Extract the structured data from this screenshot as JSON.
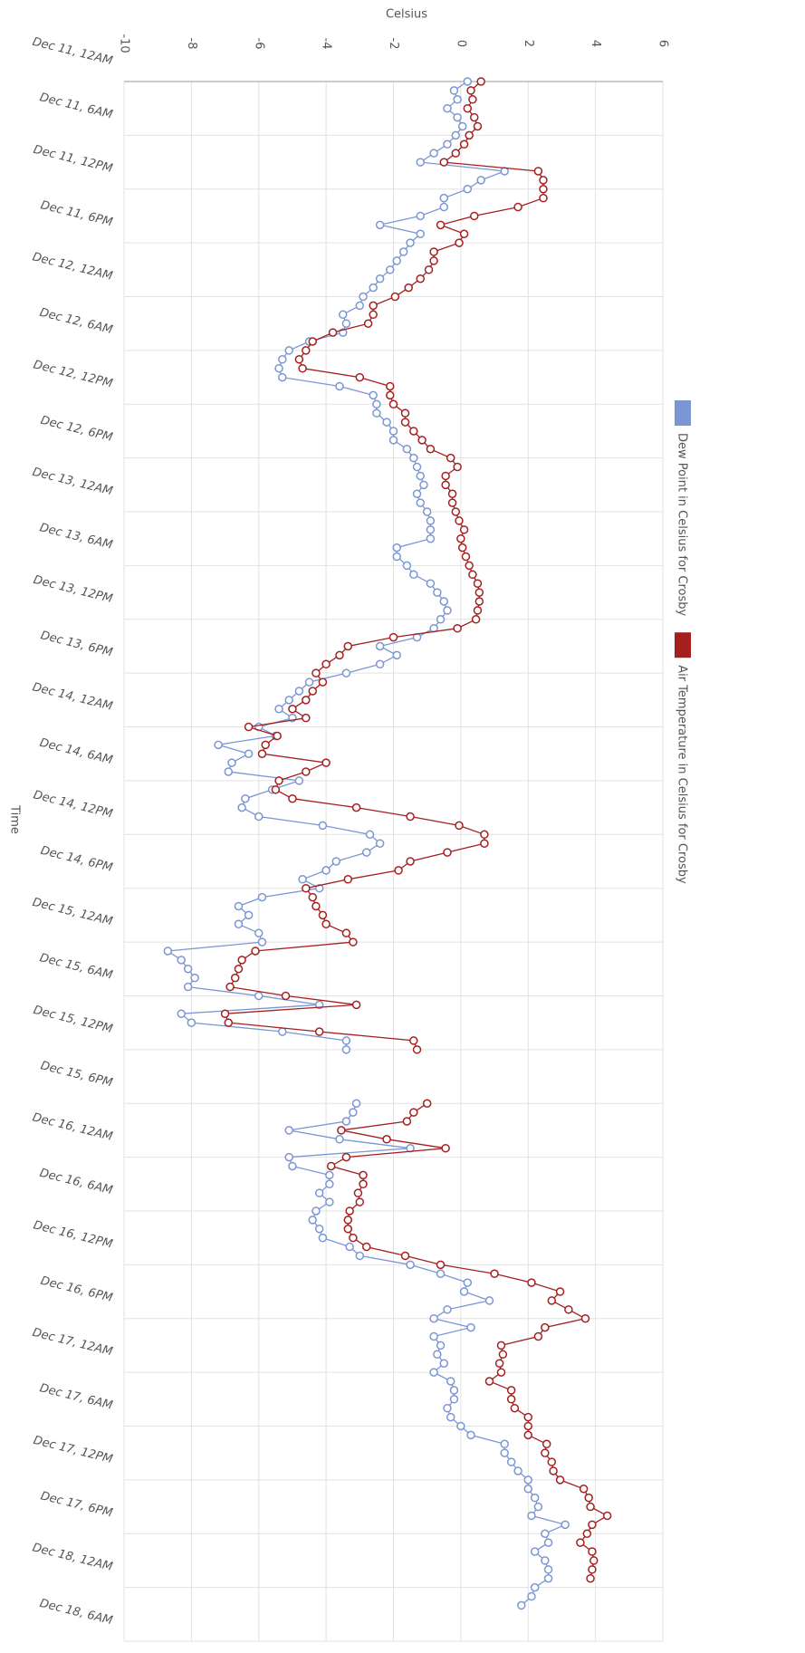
{
  "chart_data": {
    "type": "line",
    "y_label": "Celsius",
    "x_label": "Time",
    "ylim": [
      -10,
      6
    ],
    "yticks": [
      -10,
      -8,
      -6,
      -4,
      -2,
      0,
      2,
      4,
      6
    ],
    "grid": true,
    "categories": [
      "Dec 11, 12AM",
      null,
      null,
      null,
      null,
      null,
      "Dec 11, 6AM",
      null,
      null,
      null,
      null,
      null,
      "Dec 11, 12PM",
      null,
      null,
      null,
      null,
      null,
      "Dec 11, 6PM",
      null,
      null,
      null,
      null,
      null,
      "Dec 12, 12AM",
      null,
      null,
      null,
      null,
      null,
      "Dec 12, 6AM",
      null,
      null,
      null,
      null,
      null,
      "Dec 12, 12PM",
      null,
      null,
      null,
      null,
      null,
      "Dec 12, 6PM",
      null,
      null,
      null,
      null,
      null,
      "Dec 13, 12AM",
      null,
      null,
      null,
      null,
      null,
      "Dec 13, 6AM",
      null,
      null,
      null,
      null,
      null,
      "Dec 13, 12PM",
      null,
      null,
      null,
      null,
      null,
      "Dec 13, 6PM",
      null,
      null,
      null,
      null,
      null,
      "Dec 14, 12AM",
      null,
      null,
      null,
      null,
      null,
      "Dec 14, 6AM",
      null,
      null,
      null,
      null,
      null,
      "Dec 14, 12PM",
      null,
      null,
      null,
      null,
      null,
      "Dec 14, 6PM",
      null,
      null,
      null,
      null,
      null,
      "Dec 15, 12AM",
      null,
      null,
      null,
      null,
      null,
      "Dec 15, 6AM",
      null,
      null,
      null,
      null,
      null,
      "Dec 15, 12PM",
      null,
      null,
      null,
      null,
      null,
      "Dec 15, 6PM",
      null,
      null,
      null,
      null,
      null,
      "Dec 16, 12AM",
      null,
      null,
      null,
      null,
      null,
      "Dec 16, 6AM",
      null,
      null,
      null,
      null,
      null,
      "Dec 16, 12PM",
      null,
      null,
      null,
      null,
      null,
      "Dec 16, 6PM",
      null,
      null,
      null,
      null,
      null,
      "Dec 17, 12AM",
      null,
      null,
      null,
      null,
      null,
      "Dec 17, 6AM",
      null,
      null,
      null,
      null,
      null,
      "Dec 17, 12PM",
      null,
      null,
      null,
      null,
      null,
      "Dec 17, 6PM",
      null,
      null,
      null,
      null,
      null,
      "Dec 18, 12AM",
      null,
      null,
      null,
      null,
      null,
      "Dec 18, 6AM"
    ],
    "series": [
      {
        "name": "Dew Point in Celsius for Crosby",
        "color": "#7b96d4",
        "values": [
          0.2,
          -0.2,
          -0.1,
          -0.4,
          -0.1,
          0.05,
          -0.15,
          -0.4,
          -0.8,
          -1.2,
          1.3,
          0.6,
          0.2,
          -0.5,
          -0.5,
          -1.2,
          -2.4,
          -1.2,
          -1.5,
          -1.7,
          -1.9,
          -2.1,
          -2.4,
          -2.6,
          -2.9,
          -3.0,
          -3.5,
          -3.4,
          -3.5,
          -4.5,
          -5.1,
          -5.3,
          -5.4,
          -5.3,
          -3.6,
          -2.6,
          -2.5,
          -2.5,
          -2.2,
          -2.0,
          -2.0,
          -1.6,
          -1.4,
          -1.3,
          -1.2,
          -1.1,
          -1.3,
          -1.2,
          -1.0,
          -0.9,
          -0.9,
          -0.9,
          -1.9,
          -1.9,
          -1.6,
          -1.4,
          -0.9,
          -0.7,
          -0.5,
          -0.4,
          -0.6,
          -0.8,
          -1.3,
          -2.4,
          -1.9,
          -2.4,
          -3.4,
          -4.5,
          -4.8,
          -5.1,
          -5.4,
          -5.0,
          -6.0,
          -5.5,
          -7.2,
          -6.3,
          -6.8,
          -6.9,
          -4.8,
          -5.6,
          -6.4,
          -6.5,
          -6.0,
          -4.1,
          -2.7,
          -2.4,
          -2.8,
          -3.7,
          -4.0,
          -4.7,
          -4.2,
          -5.9,
          -6.6,
          -6.3,
          -6.6,
          -6.0,
          -5.9,
          -8.7,
          -8.3,
          -8.1,
          -7.9,
          -8.1,
          -6.0,
          -4.2,
          -8.3,
          -8.0,
          -5.3,
          -3.4,
          -3.4,
          null,
          null,
          null,
          null,
          null,
          -3.1,
          -3.2,
          -3.4,
          -5.1,
          -3.6,
          -1.5,
          -5.1,
          -5.0,
          -3.9,
          -3.9,
          -4.2,
          -3.9,
          -4.3,
          -4.4,
          -4.2,
          -4.1,
          -3.3,
          -3.0,
          -1.5,
          -0.6,
          0.2,
          0.1,
          0.85,
          -0.4,
          -0.8,
          0.3,
          -0.8,
          -0.6,
          -0.7,
          -0.5,
          -0.8,
          -0.3,
          -0.2,
          -0.2,
          -0.4,
          -0.3,
          0,
          0.3,
          1.3,
          1.3,
          1.5,
          1.7,
          2.0,
          2.0,
          2.2,
          2.3,
          2.1,
          3.1,
          2.5,
          2.6,
          2.2,
          2.5,
          2.6,
          2.6,
          2.2,
          2.1,
          1.8,
          null,
          null,
          null,
          null
        ]
      },
      {
        "name": "Air Temperature in Celsius for Crosby",
        "color": "#a51f1f",
        "values": [
          0.6,
          0.3,
          0.35,
          0.2,
          0.4,
          0.5,
          0.25,
          0.1,
          -0.15,
          -0.5,
          2.3,
          2.45,
          2.45,
          2.45,
          1.7,
          0.4,
          -0.6,
          0.1,
          -0.05,
          -0.8,
          -0.8,
          -0.95,
          -1.2,
          -1.55,
          -1.95,
          -2.6,
          -2.6,
          -2.75,
          -3.8,
          -4.4,
          -4.6,
          -4.8,
          -4.7,
          -3.0,
          -2.1,
          -2.1,
          -2.0,
          -1.65,
          -1.65,
          -1.4,
          -1.15,
          -0.9,
          -0.3,
          -0.1,
          -0.45,
          -0.45,
          -0.25,
          -0.25,
          -0.15,
          -0.05,
          0.1,
          0,
          0.05,
          0.15,
          0.25,
          0.35,
          0.5,
          0.55,
          0.55,
          0.5,
          0.45,
          -0.1,
          -2.0,
          -3.35,
          -3.6,
          -4.0,
          -4.3,
          -4.1,
          -4.4,
          -4.6,
          -5.0,
          -4.6,
          -6.3,
          -5.45,
          -5.8,
          -5.9,
          -4.0,
          -4.6,
          -5.4,
          -5.5,
          -5.0,
          -3.1,
          -1.5,
          -0.05,
          0.7,
          0.7,
          -0.4,
          -1.5,
          -1.85,
          -3.35,
          -4.6,
          -4.4,
          -4.3,
          -4.1,
          -4.0,
          -3.4,
          -3.2,
          -6.1,
          -6.5,
          -6.6,
          -6.7,
          -6.85,
          -5.2,
          -3.1,
          -7.0,
          -6.9,
          -4.2,
          -1.4,
          -1.3,
          null,
          null,
          null,
          null,
          null,
          -1.0,
          -1.4,
          -1.6,
          -3.55,
          -2.2,
          -0.45,
          -3.4,
          -3.85,
          -2.9,
          -2.9,
          -3.05,
          -3.0,
          -3.3,
          -3.35,
          -3.35,
          -3.2,
          -2.8,
          -1.65,
          -0.6,
          1.0,
          2.1,
          2.95,
          2.7,
          3.2,
          3.7,
          2.5,
          2.3,
          1.2,
          1.25,
          1.15,
          1.2,
          0.85,
          1.5,
          1.5,
          1.6,
          2.0,
          2.0,
          2.0,
          2.55,
          2.5,
          2.7,
          2.75,
          2.95,
          3.65,
          3.8,
          3.85,
          4.35,
          3.9,
          3.75,
          3.55,
          3.9,
          3.95,
          3.9,
          3.85,
          null,
          null,
          null,
          null,
          null,
          null,
          null
        ]
      }
    ]
  }
}
